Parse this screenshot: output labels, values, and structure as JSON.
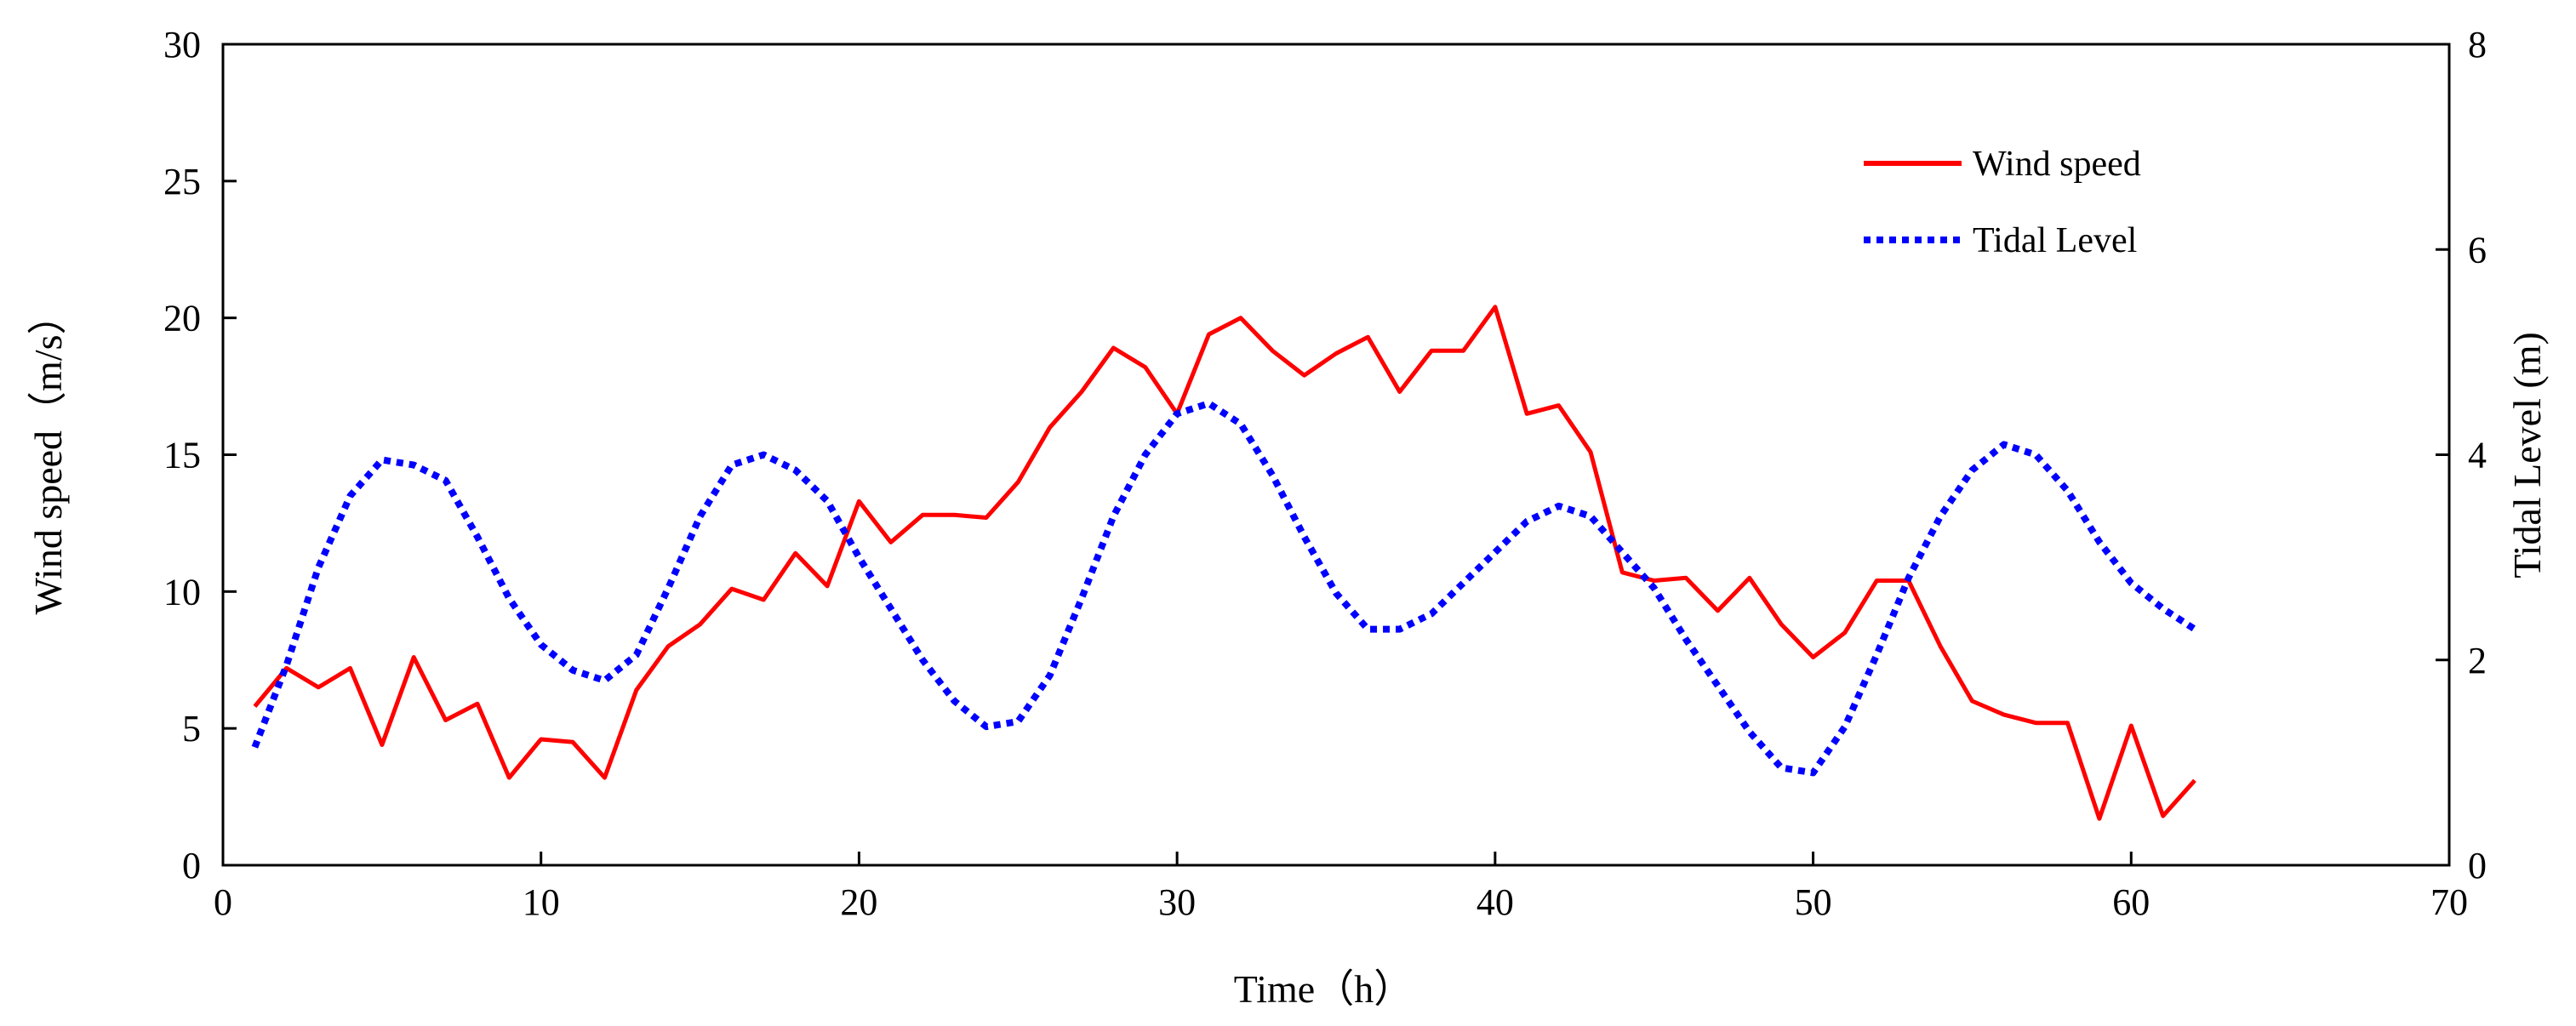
{
  "chart_data": {
    "type": "line",
    "xlabel": "Time（h）",
    "ylabel_left": "Wind speed（m/s）",
    "ylabel_right": "Tidal Level (m)",
    "xlim": [
      0,
      70
    ],
    "ylim_left": [
      0,
      30
    ],
    "ylim_right": [
      0,
      8
    ],
    "x_ticks": [
      0,
      10,
      20,
      30,
      40,
      50,
      60,
      70
    ],
    "y_left_ticks": [
      0,
      5,
      10,
      15,
      20,
      25,
      30
    ],
    "y_right_ticks": [
      0,
      2,
      4,
      6,
      8
    ],
    "legend_position": "top-right",
    "grid": false,
    "series": [
      {
        "name": "Wind speed",
        "axis": "left",
        "color": "#ff0000",
        "style": "solid",
        "x": [
          1,
          2,
          3,
          4,
          5,
          6,
          7,
          8,
          9,
          10,
          11,
          12,
          13,
          14,
          15,
          16,
          17,
          18,
          19,
          20,
          21,
          22,
          23,
          24,
          25,
          26,
          27,
          28,
          29,
          30,
          31,
          32,
          33,
          34,
          35,
          36,
          37,
          38,
          39,
          40,
          41,
          42,
          43,
          44,
          45,
          46,
          47,
          48,
          49,
          50,
          51,
          52,
          53,
          54,
          55,
          56,
          57,
          58,
          59,
          60,
          61,
          62
        ],
        "y": [
          5.8,
          7.2,
          6.5,
          7.2,
          4.4,
          7.6,
          5.3,
          5.9,
          3.2,
          4.6,
          4.5,
          3.2,
          6.4,
          8.0,
          8.8,
          10.1,
          9.7,
          11.4,
          10.2,
          13.3,
          11.8,
          12.8,
          12.8,
          12.7,
          14.0,
          16.0,
          17.3,
          18.9,
          18.2,
          16.5,
          19.4,
          20.0,
          18.8,
          17.9,
          18.7,
          19.3,
          17.3,
          18.8,
          18.8,
          20.4,
          16.5,
          16.8,
          15.1,
          10.7,
          10.4,
          10.5,
          9.3,
          10.5,
          8.8,
          7.6,
          8.5,
          10.4,
          10.4,
          8.0,
          6.0,
          5.5,
          5.2,
          5.2,
          1.7,
          5.1,
          1.8,
          3.1
        ]
      },
      {
        "name": "Tidal Level",
        "axis": "right",
        "color": "#0000ff",
        "style": "dotted",
        "x": [
          1,
          2,
          3,
          4,
          5,
          6,
          7,
          8,
          9,
          10,
          11,
          12,
          13,
          14,
          15,
          16,
          17,
          18,
          19,
          20,
          21,
          22,
          23,
          24,
          25,
          26,
          27,
          28,
          29,
          30,
          31,
          32,
          33,
          34,
          35,
          36,
          37,
          38,
          39,
          40,
          41,
          42,
          43,
          44,
          45,
          46,
          47,
          48,
          49,
          50,
          51,
          52,
          53,
          54,
          55,
          56,
          57,
          58,
          59,
          60,
          61,
          62
        ],
        "y": [
          1.15,
          1.95,
          2.9,
          3.6,
          3.95,
          3.9,
          3.75,
          3.2,
          2.6,
          2.15,
          1.9,
          1.8,
          2.05,
          2.7,
          3.4,
          3.9,
          4.0,
          3.85,
          3.55,
          3.0,
          2.5,
          2.0,
          1.6,
          1.35,
          1.4,
          1.85,
          2.6,
          3.4,
          4.0,
          4.4,
          4.5,
          4.3,
          3.8,
          3.2,
          2.65,
          2.3,
          2.3,
          2.45,
          2.75,
          3.05,
          3.35,
          3.5,
          3.4,
          3.05,
          2.7,
          2.2,
          1.75,
          1.3,
          0.95,
          0.9,
          1.35,
          2.05,
          2.8,
          3.4,
          3.85,
          4.1,
          4.0,
          3.65,
          3.15,
          2.75,
          2.5,
          2.3
        ]
      }
    ]
  }
}
